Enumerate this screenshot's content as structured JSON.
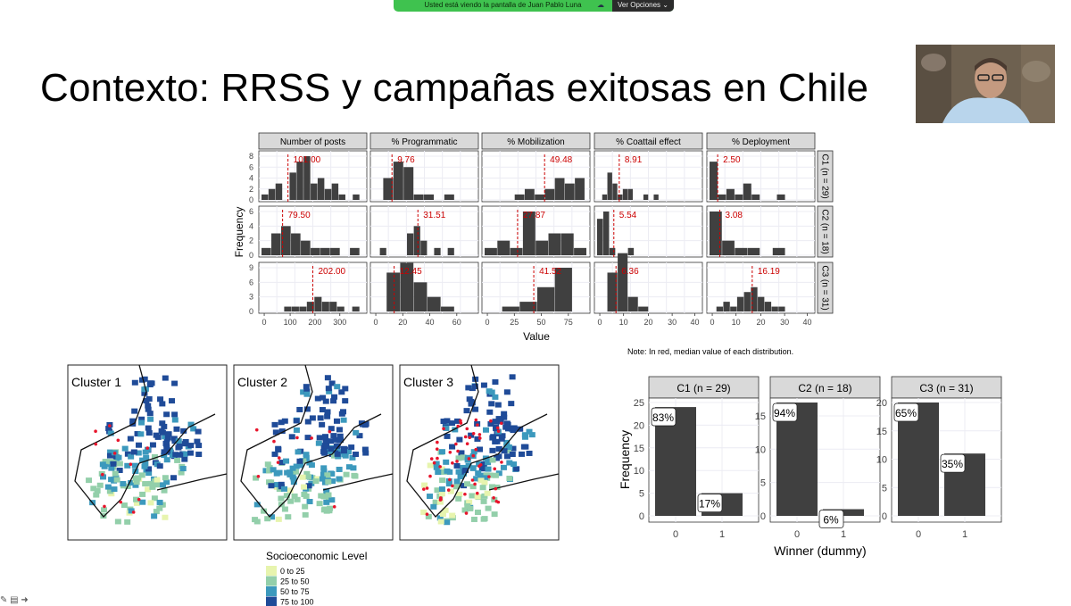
{
  "zoom": {
    "banner_text": "Usted está viendo la pantalla de Juan Pablo Luna",
    "options_label": "Ver Opciones",
    "options_icon": "chevron-down-icon",
    "status_icon": "cloud-icon",
    "banner_color": "#3fc24f"
  },
  "slide": {
    "title": "Contexto: RRSS y campañas exitosas en Chile",
    "note": "Note: In red, median value of each distribution."
  },
  "histograms": {
    "columns": [
      "Number of posts",
      "% Programmatic",
      "% Mobilization",
      "% Coattail effect",
      "% Deployment"
    ],
    "rows": [
      "C1 (n = 29)",
      "C2 (n = 18)",
      "C3 (n = 31)"
    ],
    "y_label": "Frequency",
    "x_label": "Value",
    "y_ticks": [
      [
        "0",
        "2",
        "4",
        "6",
        "8"
      ],
      [
        "0",
        "2",
        "4",
        "6"
      ],
      [
        "0",
        "3",
        "6",
        "9"
      ]
    ],
    "x_ticks": [
      [
        "0",
        "100",
        "200",
        "300"
      ],
      [
        "0",
        "20",
        "40",
        "60"
      ],
      [
        "0",
        "25",
        "50",
        "75"
      ],
      [
        "0",
        "10",
        "20",
        "30",
        "40"
      ],
      [
        "0",
        "10",
        "20",
        "30",
        "40"
      ]
    ],
    "medians": [
      [
        "101.00",
        "9.76",
        "49.48",
        "8.91",
        "2.50"
      ],
      [
        "79.50",
        "31.51",
        "27.87",
        "5.54",
        "3.08"
      ],
      [
        "202.00",
        "12.45",
        "41.52",
        "6.36",
        "16.19"
      ]
    ],
    "median_color": "#cc0000",
    "bar_color": "#404040"
  },
  "maps": {
    "titles": [
      "Cluster 1",
      "Cluster 2",
      "Cluster 3"
    ],
    "legend_title": "Socioeconomic Level",
    "legend_items": [
      {
        "label": "0 to 25",
        "color": "#e7f4ae"
      },
      {
        "label": "25 to 50",
        "color": "#93cfaa"
      },
      {
        "label": "50 to 75",
        "color": "#3c99bd"
      },
      {
        "label": "75 to 100",
        "color": "#1f4b98"
      }
    ]
  },
  "chart_data": {
    "type": "bar",
    "facets": [
      "C1 (n = 29)",
      "C2 (n = 18)",
      "C3 (n = 31)"
    ],
    "categories": [
      "0",
      "1"
    ],
    "values": [
      [
        24,
        5
      ],
      [
        17,
        1
      ],
      [
        20,
        11
      ]
    ],
    "labels": [
      [
        "83%",
        "17%"
      ],
      [
        "94%",
        "6%"
      ],
      [
        "65%",
        "35%"
      ]
    ],
    "ylims": [
      [
        0,
        25
      ],
      [
        0,
        17
      ],
      [
        0,
        20
      ]
    ],
    "y_ticks": [
      [
        0,
        5,
        10,
        15,
        20,
        25
      ],
      [
        0,
        5,
        10,
        15
      ],
      [
        0,
        5,
        10,
        15,
        20
      ]
    ],
    "xlabel": "Winner (dummy)",
    "ylabel": "Frequency",
    "grid": true
  }
}
